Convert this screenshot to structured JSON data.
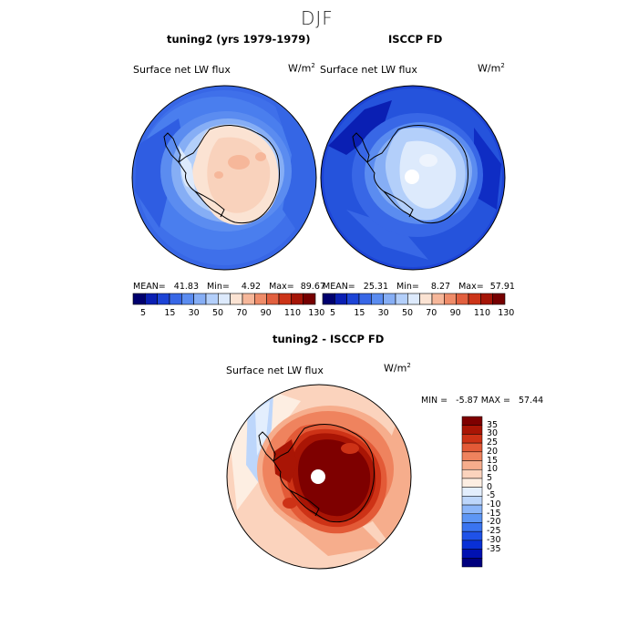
{
  "season": "DJF",
  "colors": {
    "flux_scale": [
      "#00006e",
      "#0a1fb3",
      "#1d44d6",
      "#3867e6",
      "#5b8cf0",
      "#86aef5",
      "#b3cffa",
      "#ddeafc",
      "#fbe3d3",
      "#f6b79a",
      "#ef8c69",
      "#e2603f",
      "#cc3418",
      "#a51507",
      "#760000"
    ],
    "diff_scale": [
      "#00007e",
      "#0011b2",
      "#0930d6",
      "#1f52e8",
      "#3a74f0",
      "#5d96f5",
      "#8cb6f9",
      "#bdd6fb",
      "#e3eefd",
      "#fdeee2",
      "#fbd3bd",
      "#f6ad8c",
      "#ef835e",
      "#e35a37",
      "#cd3216",
      "#a91505",
      "#7e0000"
    ]
  },
  "panel_left": {
    "heading": "tuning2 (yrs 1979-1979)",
    "variable": "Surface net LW flux",
    "units_base": "W/m",
    "units_exp": "2",
    "stats": {
      "mean_label": "MEAN=",
      "mean": "41.83",
      "min_label": "Min=",
      "min": "4.92",
      "max_label": "Max=",
      "max": "89.67"
    }
  },
  "panel_right": {
    "heading": "ISCCP FD",
    "variable": "Surface net LW flux",
    "units_base": "W/m",
    "units_exp": "2",
    "stats": {
      "mean_label": "MEAN=",
      "mean": "25.31",
      "min_label": "Min=",
      "min": "8.27",
      "max_label": "Max=",
      "max": "57.91"
    }
  },
  "colorbar_top": {
    "ticks": [
      "5",
      "15",
      "30",
      "50",
      "70",
      "90",
      "110",
      "130"
    ]
  },
  "panel_diff": {
    "heading": "tuning2 - ISCCP FD",
    "variable": "Surface net LW flux",
    "units_base": "W/m",
    "units_exp": "2",
    "stats_text": "MIN =   -5.87 MAX =   57.44",
    "colorbar_ticks": [
      "35",
      "30",
      "25",
      "20",
      "15",
      "10",
      "5",
      "0",
      "-5",
      "-10",
      "-15",
      "-20",
      "-25",
      "-30",
      "-35"
    ]
  }
}
